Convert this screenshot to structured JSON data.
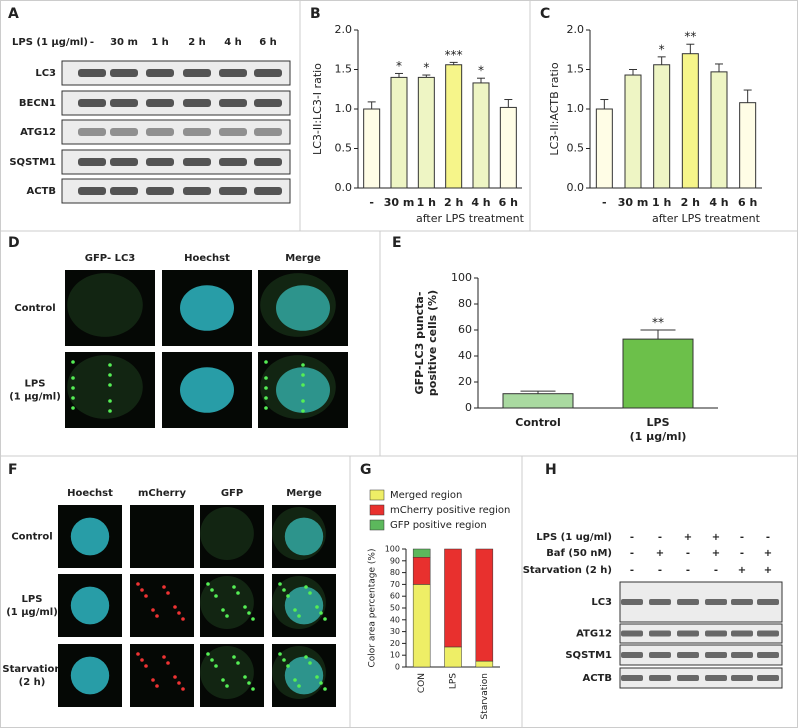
{
  "chart_data": [
    {
      "type": "bar",
      "categories": [
        "-",
        "30 m",
        "1 h",
        "2 h",
        "4 h",
        "6 h"
      ],
      "values": [
        1.0,
        1.4,
        1.4,
        1.56,
        1.33,
        1.02
      ],
      "errors": [
        0.09,
        0.05,
        0.03,
        0.03,
        0.06,
        0.1
      ],
      "annotations": [
        null,
        "*",
        "*",
        "***",
        "*",
        null
      ],
      "colors": [
        "#fffde6",
        "#eef5c4",
        "#eef5c4",
        "#f6f58a",
        "#eef5c4",
        "#fffde6"
      ],
      "ylabel": "LC3-II:LC3-I ratio",
      "xlabel": "after LPS treatment",
      "ylim": [
        0,
        2
      ],
      "yticks": [
        {
          "value": 0,
          "label": "0.0"
        },
        {
          "value": 0.5,
          "label": "0.5"
        },
        {
          "value": 1,
          "label": "1.0"
        },
        {
          "value": 1.5,
          "label": "1.5"
        },
        {
          "value": 2,
          "label": "2.0"
        }
      ]
    },
    {
      "type": "bar",
      "categories": [
        "-",
        "30 m",
        "1 h",
        "2 h",
        "4 h",
        "6 h"
      ],
      "values": [
        1.0,
        1.43,
        1.56,
        1.7,
        1.47,
        1.08
      ],
      "errors": [
        0.12,
        0.07,
        0.1,
        0.12,
        0.1,
        0.16
      ],
      "annotations": [
        null,
        null,
        "*",
        "**",
        null,
        null
      ],
      "colors": [
        "#fffde6",
        "#eef5c4",
        "#eef5c4",
        "#f6f58a",
        "#eef5c4",
        "#fffde6"
      ],
      "ylabel": "LC3-II:ACTB ratio",
      "xlabel": "after LPS treatment",
      "ylim": [
        0,
        2
      ],
      "yticks": [
        {
          "value": 0,
          "label": "0.0"
        },
        {
          "value": 0.5,
          "label": "0.5"
        },
        {
          "value": 1,
          "label": "1.0"
        },
        {
          "value": 1.5,
          "label": "1.5"
        },
        {
          "value": 2,
          "label": "2.0"
        }
      ]
    },
    {
      "type": "bar",
      "categories": [
        [
          "Control"
        ],
        [
          "LPS",
          "(1 μg/ml)"
        ]
      ],
      "values": [
        11,
        53
      ],
      "errors": [
        2,
        7
      ],
      "annotations": [
        null,
        "**"
      ],
      "colors": [
        "#a9d9a0",
        "#6cc04a"
      ],
      "ylabel": [
        "GFP-LC3 puncta-",
        "positive cells (%)"
      ],
      "ylim": [
        0,
        100
      ],
      "yticks": [
        0,
        20,
        40,
        60,
        80,
        100
      ]
    },
    {
      "type": "stacked_bar",
      "categories": [
        "CON",
        "LPS",
        "Starvation"
      ],
      "series": [
        {
          "name": "Merged region",
          "color": "#eeee66",
          "values": [
            70,
            17,
            5
          ]
        },
        {
          "name": "mCherry positive region",
          "color": "#e8302e",
          "values": [
            23,
            83,
            95
          ]
        },
        {
          "name": "GFP positive region",
          "color": "#5cb85c",
          "values": [
            7,
            0,
            0
          ]
        }
      ],
      "ylabel": "Color area percentage (%)",
      "ylim": [
        0,
        100
      ],
      "yticks": [
        0,
        10,
        20,
        30,
        40,
        50,
        60,
        70,
        80,
        90,
        100
      ],
      "legend": "top"
    }
  ],
  "panels": {
    "letters": [
      "A",
      "B",
      "C",
      "D",
      "E",
      "F",
      "G",
      "H"
    ],
    "blot_a": {
      "treatment": "LPS (1 μg/ml)",
      "lanes": [
        "-",
        "30 m",
        "1 h",
        "2 h",
        "4 h",
        "6 h"
      ],
      "rows": [
        "LC3",
        "BECN1",
        "ATG12",
        "SQSTM1",
        "ACTB"
      ]
    },
    "micro_d": {
      "columns": [
        "GFP- LC3",
        "Hoechst",
        "Merge"
      ],
      "rows": [
        [
          "Control"
        ],
        [
          "LPS",
          "(1 μg/ml)"
        ]
      ]
    },
    "micro_f": {
      "columns": [
        "Hoechst",
        "mCherry",
        "GFP",
        "Merge"
      ],
      "rows": [
        [
          "Control"
        ],
        [
          "LPS",
          "(1 μg/ml)"
        ],
        [
          "Starvation",
          "(2 h)"
        ]
      ]
    },
    "blot_h": {
      "conditions": [
        {
          "label": "LPS (1 ug/ml)",
          "signs": [
            "-",
            "-",
            "+",
            "+",
            "-",
            "-"
          ]
        },
        {
          "label": "Baf (50 nM)",
          "signs": [
            "-",
            "+",
            "-",
            "+",
            "-",
            "+"
          ]
        },
        {
          "label": "Starvation (2 h)",
          "signs": [
            "-",
            "-",
            "-",
            "-",
            "+",
            "+"
          ]
        }
      ],
      "rows": [
        "LC3",
        "ATG12",
        "SQSTM1",
        "ACTB"
      ]
    }
  }
}
